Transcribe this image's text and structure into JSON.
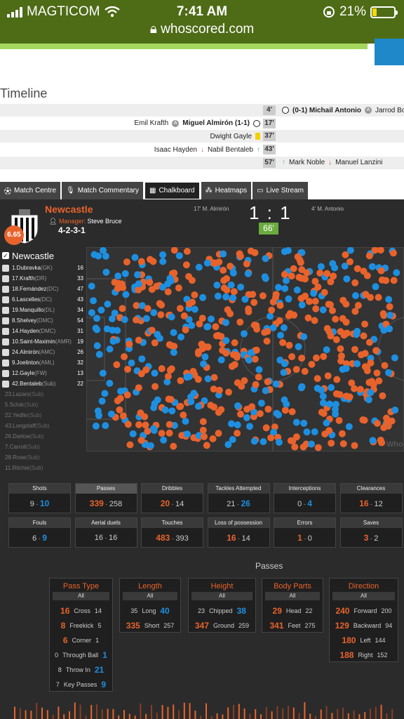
{
  "status_bar": {
    "carrier": "MAGTICOM",
    "time": "7:41 AM",
    "url": "whoscored.com",
    "battery": "21%",
    "battery_level": 0.21
  },
  "timeline": {
    "title": "Timeline",
    "events": [
      {
        "minute": "4'",
        "left": "",
        "left2": "",
        "left_icon": "",
        "right_icon": "ball-icon",
        "right": "(0-1) Michail Antonio",
        "right_icon2": "sub-icon",
        "right2": "Jarrod Bowe",
        "shade": true
      },
      {
        "minute": "17'",
        "left": "Emil Krafth",
        "left_icon": "sub-icon",
        "left2": "Miguel Almirón (1-1)",
        "left_icon2": "ball-icon",
        "right": "",
        "right_icon": "",
        "right2": "",
        "right_icon2": "",
        "shade": false
      },
      {
        "minute": "37'",
        "left": "",
        "left_icon": "",
        "left2": "Dwight Gayle",
        "left_icon2": "yellow-card-icon",
        "right": "",
        "right_icon": "",
        "right2": "",
        "right_icon2": "",
        "shade": true
      },
      {
        "minute": "43'",
        "left": "Isaac Hayden",
        "left_icon": "sub-out-icon",
        "left2": "Nabil Bentaleb",
        "left_icon2": "sub-in-icon",
        "right": "",
        "right_icon": "",
        "right2": "",
        "right_icon2": "",
        "shade": false
      },
      {
        "minute": "57'",
        "left": "",
        "left_icon": "",
        "left2": "",
        "left_icon2": "",
        "right_icon": "sub-in-icon",
        "right": "Mark Noble",
        "right_icon2": "sub-out-icon",
        "right2": "Manuel Lanzini",
        "shade": true
      }
    ]
  },
  "tabs": [
    {
      "label": "Match Centre",
      "icon": "ball-icon"
    },
    {
      "label": "Match Commentary",
      "icon": "microphone-icon"
    },
    {
      "label": "Chalkboard",
      "icon": "chalkboard-icon",
      "active": true
    },
    {
      "label": "Heatmaps",
      "icon": "grid-icon"
    },
    {
      "label": "Live Stream",
      "icon": "monitor-icon"
    }
  ],
  "match": {
    "team": "Newcastle",
    "rating": "6.65",
    "manager_label": "Manager:",
    "manager": "Steve Bruce",
    "formation": "4-2-3-1",
    "home_goal": "17' M. Almirón",
    "away_goal": "4' M. Antonio",
    "score": "1 : 1",
    "minute": "66'"
  },
  "players": {
    "team_label": "Newcastle",
    "check": "✓",
    "list": [
      {
        "name": "1.Dubravka",
        "pos": "(GK)",
        "count": "16",
        "sub": false
      },
      {
        "name": "17.Krafth",
        "pos": "(DR)",
        "count": "33",
        "sub": false
      },
      {
        "name": "18.Fernández",
        "pos": "(DC)",
        "count": "47",
        "sub": false
      },
      {
        "name": "6.Lascelles",
        "pos": "(DC)",
        "count": "43",
        "sub": false
      },
      {
        "name": "19.Manquillo",
        "pos": "(DL)",
        "count": "34",
        "sub": false
      },
      {
        "name": "8.Shelvey",
        "pos": "(DMC)",
        "count": "54",
        "sub": false
      },
      {
        "name": "14.Hayden",
        "pos": "(DMC)",
        "count": "31",
        "sub": false
      },
      {
        "name": "10.Saint-Maximin",
        "pos": "(AMR)",
        "count": "19",
        "sub": false
      },
      {
        "name": "24.Almirón",
        "pos": "(AMC)",
        "count": "26",
        "sub": false
      },
      {
        "name": "9.Joelinton",
        "pos": "(AML)",
        "count": "32",
        "sub": false
      },
      {
        "name": "12.Gayle",
        "pos": "(FW)",
        "count": "13",
        "sub": false
      },
      {
        "name": "42.Bentaleb",
        "pos": "(Sub)",
        "count": "22",
        "sub": false
      },
      {
        "name": "23.Lazaro",
        "pos": "(Sub)",
        "count": "",
        "sub": true
      },
      {
        "name": "5.Schär",
        "pos": "(Sub)",
        "count": "",
        "sub": true
      },
      {
        "name": "22.Yedlin",
        "pos": "(Sub)",
        "count": "",
        "sub": true
      },
      {
        "name": "43.Longstaff",
        "pos": "(Sub)",
        "count": "",
        "sub": true
      },
      {
        "name": "26.Darlow",
        "pos": "(Sub)",
        "count": "",
        "sub": true
      },
      {
        "name": "7.Carroll",
        "pos": "(Sub)",
        "count": "",
        "sub": true
      },
      {
        "name": "28.Rose",
        "pos": "(Sub)",
        "count": "",
        "sub": true
      },
      {
        "name": "11.Ritchie",
        "pos": "(Sub)",
        "count": "",
        "sub": true
      }
    ]
  },
  "pitch": {
    "watermark": "Who",
    "colors": {
      "home": "#e8632c",
      "away": "#1e8fe0"
    }
  },
  "stats": [
    {
      "label": "Shots",
      "home": "9",
      "away": "10",
      "lead": "away"
    },
    {
      "label": "Passes",
      "home": "339",
      "away": "258",
      "lead": "home",
      "highlight": true
    },
    {
      "label": "Dribbles",
      "home": "20",
      "away": "14",
      "lead": "home"
    },
    {
      "label": "Tackles Attempted",
      "home": "21",
      "away": "26",
      "lead": "away"
    },
    {
      "label": "Interceptions",
      "home": "0",
      "away": "4",
      "lead": "away"
    },
    {
      "label": "Clearances",
      "home": "16",
      "away": "12",
      "lead": "home"
    },
    {
      "label": "Fouls",
      "home": "6",
      "away": "9",
      "lead": "away"
    },
    {
      "label": "Aerial duels",
      "home": "16",
      "away": "16",
      "lead": "none"
    },
    {
      "label": "Touches",
      "home": "483",
      "away": "393",
      "lead": "home"
    },
    {
      "label": "Loss of possession",
      "home": "16",
      "away": "14",
      "lead": "home"
    },
    {
      "label": "Errors",
      "home": "1",
      "away": "0",
      "lead": "home"
    },
    {
      "label": "Saves",
      "home": "3",
      "away": "2",
      "lead": "home"
    }
  ],
  "passes": {
    "title": "Passes",
    "all_label": "All",
    "groups": [
      {
        "title": "Pass Type",
        "rows": [
          {
            "home": "16",
            "label": "Cross",
            "away": "14",
            "lead": "home"
          },
          {
            "home": "8",
            "label": "Freekick",
            "away": "5",
            "lead": "home"
          },
          {
            "home": "6",
            "label": "Corner",
            "away": "1",
            "lead": "home"
          },
          {
            "home": "0",
            "label": "Through Ball",
            "away": "1",
            "lead": "away"
          },
          {
            "home": "8",
            "label": "Throw In",
            "away": "21",
            "lead": "away"
          },
          {
            "home": "7",
            "label": "Key Passes",
            "away": "9",
            "lead": "away"
          }
        ]
      },
      {
        "title": "Length",
        "rows": [
          {
            "home": "35",
            "label": "Long",
            "away": "40",
            "lead": "away"
          },
          {
            "home": "335",
            "label": "Short",
            "away": "257",
            "lead": "home"
          }
        ]
      },
      {
        "title": "Height",
        "rows": [
          {
            "home": "23",
            "label": "Chipped",
            "away": "38",
            "lead": "away"
          },
          {
            "home": "347",
            "label": "Ground",
            "away": "259",
            "lead": "home"
          }
        ]
      },
      {
        "title": "Body Parts",
        "rows": [
          {
            "home": "29",
            "label": "Head",
            "away": "22",
            "lead": "home"
          },
          {
            "home": "341",
            "label": "Feet",
            "away": "275",
            "lead": "home"
          }
        ]
      },
      {
        "title": "Direction",
        "rows": [
          {
            "home": "240",
            "label": "Forward",
            "away": "200",
            "lead": "home"
          },
          {
            "home": "129",
            "label": "Backward",
            "away": "94",
            "lead": "home"
          },
          {
            "home": "180",
            "label": "Left",
            "away": "144",
            "lead": "home"
          },
          {
            "home": "188",
            "label": "Right",
            "away": "152",
            "lead": "home"
          }
        ]
      }
    ]
  }
}
